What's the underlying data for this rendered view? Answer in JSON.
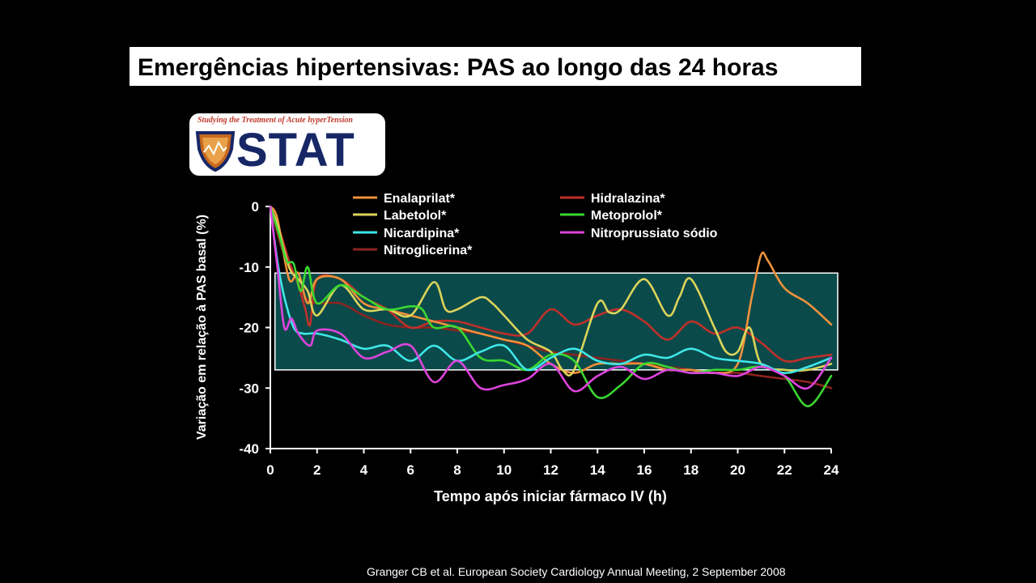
{
  "slide": {
    "title": "Emergências hipertensivas: PAS ao longo das 24 horas",
    "citation": "Granger  CB et al. European Society Cardiology Annual Meeting, 2 September 2008"
  },
  "logo": {
    "tagline": "Studying the Treatment of Acute hyperTension",
    "word": "STAT"
  },
  "colors": {
    "background": "#000000",
    "band": "#0b4a4a",
    "band_border": "#ffffff"
  },
  "chart_data": {
    "type": "line",
    "title": "",
    "xlabel": "Tempo após iniciar fármaco IV (h)",
    "ylabel": "Variação em relação à PAS basal (%)",
    "xlim": [
      0,
      24
    ],
    "ylim": [
      -40,
      0
    ],
    "xticks": [
      "0",
      "2",
      "4",
      "6",
      "8",
      "10",
      "12",
      "14",
      "16",
      "18",
      "20",
      "22",
      "24"
    ],
    "yticks": [
      "0",
      "-10",
      "-20",
      "-30",
      "-40"
    ],
    "target_band": [
      -11,
      -27
    ],
    "legend_position": "top",
    "series": [
      {
        "name": "Enalaprilat*",
        "color": "#f0913a",
        "x": [
          0,
          0.3,
          0.8,
          1.2,
          1.6,
          2,
          3,
          4,
          5,
          6,
          7,
          8,
          9,
          10,
          11,
          12,
          13,
          14,
          15,
          16,
          17,
          18,
          19,
          20,
          20.6,
          21,
          21.3,
          22,
          23,
          24
        ],
        "y": [
          0,
          -2,
          -12,
          -11,
          -16,
          -12,
          -12,
          -16,
          -17,
          -18,
          -19,
          -20,
          -21,
          -22,
          -23,
          -26,
          -27.5,
          -26,
          -26,
          -26,
          -27,
          -27,
          -27.5,
          -26,
          -15,
          -8,
          -9,
          -13.5,
          -16,
          -19.5
        ]
      },
      {
        "name": "Hidralazina*",
        "color": "#c0302a",
        "x": [
          0,
          0.4,
          0.8,
          1.2,
          1.5,
          1.7,
          2,
          3,
          4,
          5,
          6,
          7,
          8,
          9,
          10,
          11,
          12,
          13,
          14,
          15,
          16,
          17,
          18,
          19,
          20,
          21,
          22,
          23,
          24
        ],
        "y": [
          0,
          -4,
          -9,
          -13,
          -17,
          -19.5,
          -12,
          -12,
          -15,
          -17,
          -20,
          -19,
          -19,
          -20,
          -21,
          -21,
          -17,
          -19.5,
          -18,
          -17,
          -19,
          -22,
          -19,
          -21,
          -20,
          -22.5,
          -25.5,
          -25,
          -24.5
        ]
      },
      {
        "name": "Labetolol*",
        "color": "#dcd45a",
        "x": [
          0,
          0.3,
          0.8,
          1.2,
          1.6,
          2,
          3,
          4,
          5,
          6,
          7,
          7.5,
          8,
          9,
          9.5,
          10,
          11,
          12,
          12.5,
          13,
          14,
          14.5,
          15,
          16,
          17,
          17.5,
          18,
          19,
          19.5,
          20,
          20.5,
          21,
          22,
          23,
          24
        ],
        "y": [
          0,
          -3,
          -10,
          -12,
          -14,
          -18,
          -13,
          -17,
          -17,
          -18,
          -12.5,
          -17,
          -17,
          -15,
          -16,
          -18,
          -22,
          -24,
          -27,
          -27,
          -16,
          -17.5,
          -17,
          -12,
          -18,
          -15,
          -12,
          -20,
          -24,
          -24,
          -20,
          -26,
          -27,
          -27,
          -26
        ]
      },
      {
        "name": "Metoprolol*",
        "color": "#3ad830",
        "x": [
          0,
          0.4,
          0.7,
          1,
          1.3,
          1.6,
          2,
          3,
          4,
          5,
          6,
          6.5,
          7,
          8,
          9,
          10,
          11,
          12,
          13,
          14,
          15,
          16,
          17,
          18,
          19,
          20,
          21,
          22,
          23,
          24
        ],
        "y": [
          0,
          -5,
          -9,
          -9.5,
          -14,
          -10,
          -16,
          -13,
          -15,
          -17,
          -16.5,
          -17,
          -20,
          -20,
          -25,
          -25.5,
          -27,
          -24.5,
          -25.5,
          -31.5,
          -29.5,
          -26,
          -26.5,
          -27.5,
          -27,
          -27,
          -26.5,
          -28,
          -33,
          -28
        ]
      },
      {
        "name": "Nicardipina*",
        "color": "#3fe6e6",
        "x": [
          0,
          0.3,
          0.6,
          1,
          1.4,
          2,
          3,
          4,
          5,
          6,
          7,
          8,
          9,
          10,
          11,
          12,
          13,
          14,
          15,
          16,
          17,
          18,
          19,
          20,
          21,
          22,
          23,
          24
        ],
        "y": [
          0,
          -9,
          -15,
          -20,
          -21,
          -21,
          -22,
          -23.5,
          -23,
          -25.5,
          -23,
          -25.5,
          -24,
          -23,
          -27,
          -25,
          -23.5,
          -25.5,
          -26,
          -24.5,
          -25,
          -23.5,
          -25,
          -25.5,
          -26,
          -27.5,
          -26.5,
          -25
        ]
      },
      {
        "name": "Nitroprussiato sódio",
        "color": "#dd44dd",
        "x": [
          0,
          0.3,
          0.6,
          0.9,
          1.2,
          1.7,
          2,
          3,
          4,
          5,
          6,
          7,
          8,
          9,
          10,
          11,
          12,
          13,
          14,
          15,
          16,
          17,
          18,
          19,
          20,
          21,
          22,
          23,
          24
        ],
        "y": [
          0,
          -10,
          -20,
          -18.5,
          -21,
          -23,
          -20.5,
          -21,
          -25,
          -24,
          -23,
          -29,
          -25.5,
          -30,
          -29.5,
          -28.5,
          -26,
          -30.5,
          -28,
          -26.5,
          -28.5,
          -27,
          -27.5,
          -27.5,
          -28,
          -26.5,
          -28,
          -30,
          -25
        ]
      },
      {
        "name": "Nitroglicerina*",
        "color": "#8c2420",
        "x": [
          0,
          0.5,
          1,
          1.5,
          2,
          3,
          4,
          5,
          6,
          7,
          8,
          9,
          10,
          11,
          12,
          13,
          14,
          15,
          16,
          17,
          18,
          19,
          20,
          21,
          22,
          23,
          24
        ],
        "y": [
          0,
          -7,
          -11,
          -15,
          -16,
          -16,
          -18,
          -19.5,
          -20,
          -20,
          -20.5,
          -21,
          -22,
          -23,
          -24,
          -24.5,
          -25,
          -25.5,
          -26,
          -26.5,
          -27,
          -27.5,
          -27.5,
          -28,
          -28.5,
          -29,
          -30
        ]
      }
    ]
  }
}
